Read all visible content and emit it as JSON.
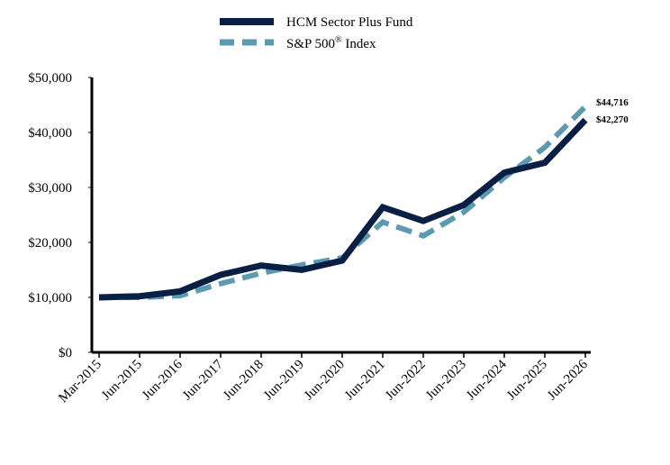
{
  "chart_data": {
    "type": "line",
    "title": "",
    "xlabel": "",
    "ylabel": "",
    "categories": [
      "Mar-2015",
      "Jun-2015",
      "Jun-2016",
      "Jun-2017",
      "Jun-2018",
      "Jun-2019",
      "Jun-2020",
      "Jun-2021",
      "Jun-2022",
      "Jun-2023",
      "Jun-2024",
      "Jun-2025",
      "Jun-2026"
    ],
    "ylim": [
      0,
      50000
    ],
    "y_ticks": [
      0,
      10000,
      20000,
      30000,
      40000,
      50000
    ],
    "y_tick_labels": [
      "$0",
      "$10,000",
      "$20,000",
      "$30,000",
      "$40,000",
      "$50,000"
    ],
    "legend_position": "top-center",
    "grid": false,
    "series": [
      {
        "name": "HCM Sector Plus Fund",
        "color": "#0a1f44",
        "style": "solid",
        "values": [
          10000,
          10200,
          11100,
          14100,
          15800,
          15000,
          16700,
          26400,
          23900,
          26800,
          32700,
          34500,
          42270
        ],
        "end_label": "$42,270"
      },
      {
        "name": "S&P 500",
        "name_superscript": "®",
        "name_suffix": " Index",
        "color": "#5b9ab1",
        "style": "dashed",
        "values": [
          10000,
          10000,
          10300,
          12500,
          14400,
          15900,
          17200,
          23700,
          21200,
          25500,
          31800,
          37300,
          44716
        ],
        "end_label": "$44,716"
      }
    ]
  }
}
